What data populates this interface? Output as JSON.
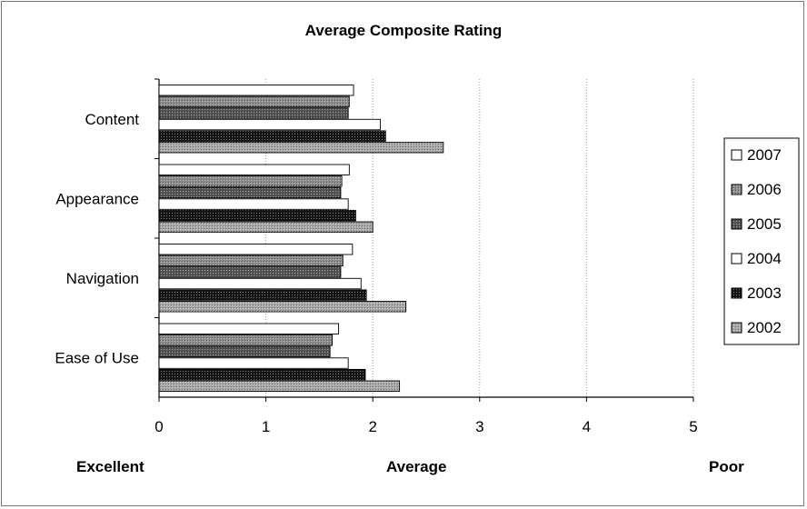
{
  "chart_data": {
    "type": "bar",
    "orientation": "horizontal",
    "title": "Average Composite Rating",
    "categories": [
      "Content",
      "Appearance",
      "Navigation",
      "Ease of Use"
    ],
    "series": [
      {
        "name": "2007",
        "values": [
          1.82,
          1.78,
          1.81,
          1.68
        ],
        "color": "#ffffff",
        "pattern": "plain"
      },
      {
        "name": "2006",
        "values": [
          1.78,
          1.71,
          1.72,
          1.62
        ],
        "color": "#8c8c8c",
        "pattern": "speckle"
      },
      {
        "name": "2005",
        "values": [
          1.77,
          1.7,
          1.7,
          1.6
        ],
        "color": "#555555",
        "pattern": "speckle"
      },
      {
        "name": "2004",
        "values": [
          2.07,
          1.77,
          1.89,
          1.77
        ],
        "color": "#ffffff",
        "pattern": "plain"
      },
      {
        "name": "2003",
        "values": [
          2.12,
          1.84,
          1.94,
          1.93
        ],
        "color": "#151515",
        "pattern": "speckle"
      },
      {
        "name": "2002",
        "values": [
          2.66,
          2.0,
          2.31,
          2.25
        ],
        "color": "#a8a8a8",
        "pattern": "speckle"
      }
    ],
    "xlim": [
      0,
      5
    ],
    "x_ticks": [
      "0",
      "1",
      "2",
      "3",
      "4",
      "5"
    ],
    "grid": "vertical",
    "legend_position": "right",
    "scale_labels": {
      "low": "Excellent",
      "mid": "Average",
      "high": "Poor"
    }
  }
}
